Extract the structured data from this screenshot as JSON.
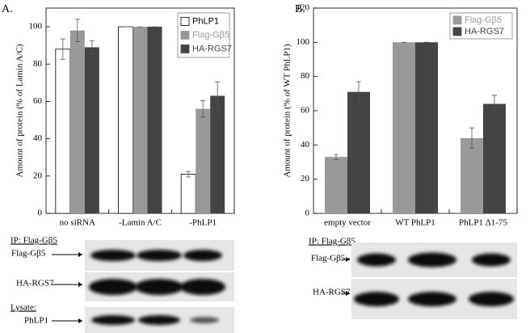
{
  "panel_labels": [
    "A.",
    "B."
  ],
  "chart_data": [
    {
      "type": "bar",
      "ylabel": "Amount of protein (% of Lamin A/C)",
      "categories": [
        "no siRNA",
        "-Lamin A/C",
        "-PhLP1"
      ],
      "series": [
        {
          "name": "PhLP1",
          "color": "#ffffff",
          "values": [
            88,
            100,
            21
          ],
          "errors": [
            5.5,
            0,
            1.5
          ]
        },
        {
          "name": "Flag-Gβ5",
          "color": "#999999",
          "values": [
            98,
            100,
            56
          ],
          "errors": [
            6,
            0,
            4.5
          ]
        },
        {
          "name": "HA-RGS7",
          "color": "#444444",
          "values": [
            89,
            100,
            63
          ],
          "errors": [
            3.5,
            0,
            7.5
          ]
        }
      ],
      "ylim": [
        0,
        110
      ],
      "yticks": [
        0,
        20,
        40,
        60,
        80,
        100
      ],
      "legend": "upper right"
    },
    {
      "type": "bar",
      "ylabel": "Amount of protein (% of WT PhLP1)",
      "categories": [
        "empty vector",
        "WT PhLP1",
        "PhLP1 Δ1-75"
      ],
      "series": [
        {
          "name": "Flag-Gβ5",
          "color": "#999999",
          "values": [
            33,
            100,
            44
          ],
          "errors": [
            1.5,
            0,
            6
          ]
        },
        {
          "name": "HA-RGS7",
          "color": "#444444",
          "values": [
            71,
            100,
            64
          ],
          "errors": [
            6,
            0,
            5
          ]
        }
      ],
      "ylim": [
        0,
        120
      ],
      "yticks": [
        0,
        20,
        40,
        60,
        80,
        100,
        120
      ],
      "legend": "upper right"
    }
  ],
  "blots": [
    {
      "header": "IP: Flag-Gβ5",
      "labels": [
        "Flag-Gβ5",
        "HA-RGS7"
      ],
      "lysate_header": "Lysate:",
      "lysate_label": "PhLP1"
    },
    {
      "header": "IP: Flag-Gβ5",
      "labels": [
        "Flag-Gβ5",
        "HA-RGS7"
      ]
    }
  ]
}
